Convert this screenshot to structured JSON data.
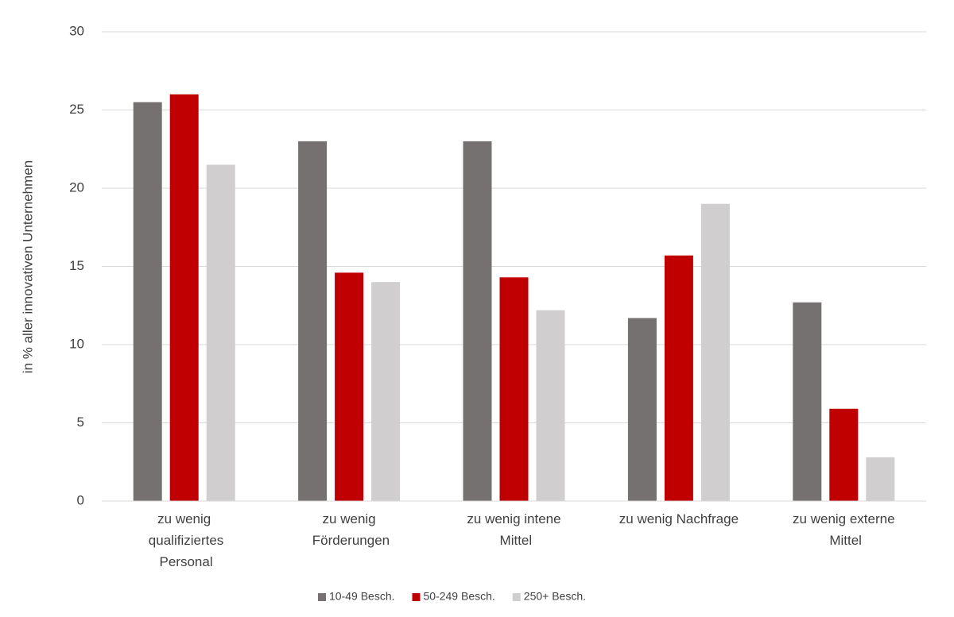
{
  "chart_data": {
    "type": "bar",
    "y_label": "in % aller innovativen Unternehmen",
    "categories": [
      "zu wenig qualifiziertes Personal",
      "zu wenig Förderungen",
      "zu wenig intene Mittel",
      "zu wenig Nachfrage",
      "zu wenig externe Mittel"
    ],
    "series": [
      {
        "name": "10-49 Besch.",
        "color": "#767171",
        "values": [
          25.5,
          23,
          23,
          11.7,
          12.7
        ]
      },
      {
        "name": "50-249 Besch.",
        "color": "#c00000",
        "values": [
          26,
          14.6,
          14.3,
          15.7,
          5.9
        ]
      },
      {
        "name": "250+ Besch.",
        "color": "#d0cece",
        "values": [
          21.5,
          14,
          12.2,
          19,
          2.8
        ]
      }
    ],
    "ylim": [
      0,
      30
    ],
    "yticks": [
      0,
      5,
      10,
      15,
      20,
      25,
      30
    ],
    "grid": true,
    "legend": "bottom"
  }
}
